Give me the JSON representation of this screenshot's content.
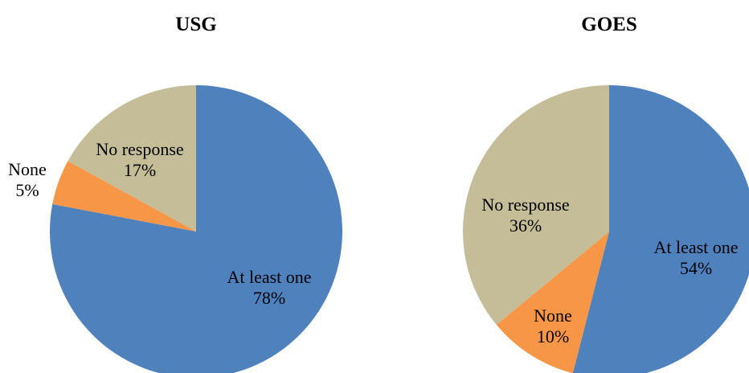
{
  "chart_data": [
    {
      "type": "pie",
      "title": "USG",
      "unit": "%",
      "start_angle_deg": 0,
      "direction": "clockwise",
      "slices": [
        {
          "label": "At least one",
          "value": 78,
          "display": "78%",
          "color": "#4F81BD"
        },
        {
          "label": "None",
          "value": 5,
          "display": "5%",
          "color": "#F79646"
        },
        {
          "label": "No response",
          "value": 17,
          "display": "17%",
          "color": "#C4BD97"
        }
      ]
    },
    {
      "type": "pie",
      "title": "GOES",
      "unit": "%",
      "start_angle_deg": 0,
      "direction": "clockwise",
      "slices": [
        {
          "label": "At least one",
          "value": 54,
          "display": "54%",
          "color": "#4F81BD"
        },
        {
          "label": "None",
          "value": 10,
          "display": "10%",
          "color": "#F79646"
        },
        {
          "label": "No response",
          "value": 36,
          "display": "36%",
          "color": "#C4BD97"
        }
      ]
    }
  ]
}
